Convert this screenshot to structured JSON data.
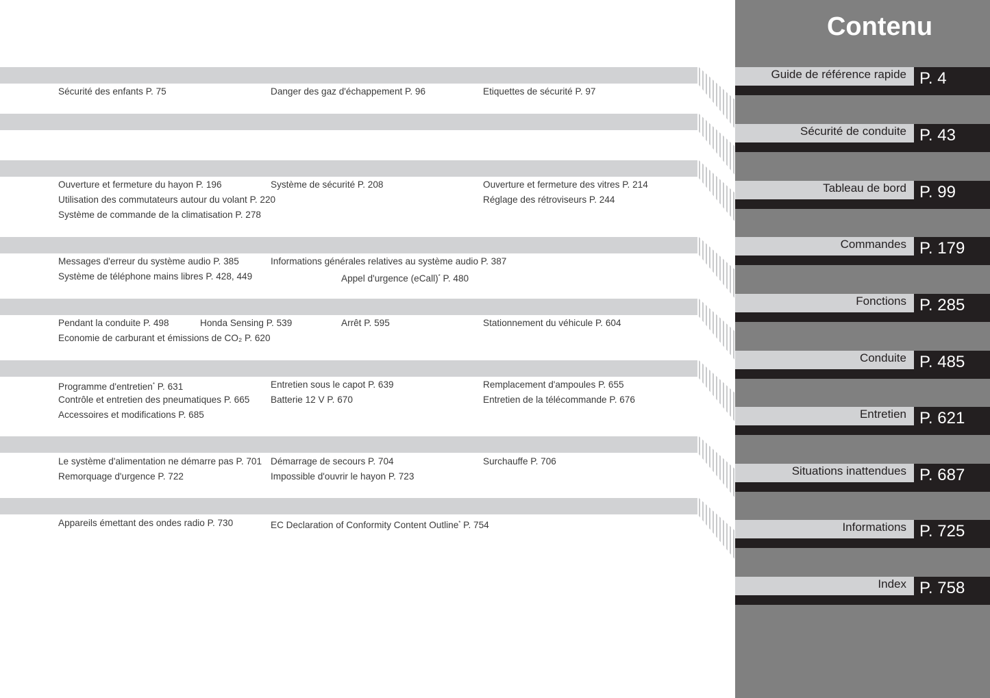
{
  "title": "Contenu",
  "colors": {
    "sidebar": "#808080",
    "tab_dark": "#231f20",
    "bar": "#d1d2d4"
  },
  "sections": [
    {
      "items": [
        "Sécurité des enfants P. 75",
        "Danger des gaz d'échappement P. 96",
        "Etiquettes de sécurité P. 97"
      ]
    },
    {
      "items": []
    },
    {
      "items": [
        "Ouverture et fermeture du hayon P. 196",
        "Système de sécurité P. 208",
        "Ouverture et fermeture des vitres P. 214",
        "Utilisation des commutateurs autour du volant P. 220",
        "Réglage des rétroviseurs P. 244",
        "Système de commande de la climatisation P. 278"
      ]
    },
    {
      "items": [
        "Messages d'erreur du système audio P. 385",
        "Informations générales relatives au système audio P. 387",
        "Système de téléphone mains libres P. 428, 449",
        {
          "pre": "Appel d'urgence (eCall)",
          "sup": "*",
          "post": " P. 480"
        }
      ]
    },
    {
      "items": [
        "Pendant la conduite P. 498",
        "Honda Sensing P. 539",
        "Arrêt P. 595",
        "Stationnement du véhicule P. 604",
        "Economie de carburant et émissions de CO₂ P. 620"
      ]
    },
    {
      "items": [
        {
          "pre": "Programme d'entretien",
          "sup": "*",
          "post": " P. 631"
        },
        "Entretien sous le capot P. 639",
        "Remplacement d'ampoules P. 655",
        "Contrôle et entretien des pneumatiques P. 665",
        "Batterie 12 V P. 670",
        "Entretien de la télécommande P. 676",
        "Accessoires et modifications P. 685"
      ]
    },
    {
      "items": [
        "Le système d'alimentation ne démarre pas P. 701",
        "Démarrage de secours P. 704",
        "Surchauffe P. 706",
        "Remorquage d'urgence P. 722",
        "Impossible d'ouvrir le hayon P. 723"
      ]
    },
    {
      "items": [
        "Appareils émettant des ondes radio P. 730",
        {
          "pre": "EC Declaration of Conformity Content Outline",
          "sup": "*",
          "post": " P. 754"
        }
      ]
    }
  ],
  "tabs": [
    {
      "label": "Guide de référence rapide",
      "page": "P. 4"
    },
    {
      "label": "Sécurité de conduite",
      "page": "P. 43"
    },
    {
      "label": "Tableau de bord",
      "page": "P. 99"
    },
    {
      "label": "Commandes",
      "page": "P. 179"
    },
    {
      "label": "Fonctions",
      "page": "P. 285"
    },
    {
      "label": "Conduite",
      "page": "P. 485"
    },
    {
      "label": "Entretien",
      "page": "P. 621"
    },
    {
      "label": "Situations inattendues",
      "page": "P. 687"
    },
    {
      "label": "Informations",
      "page": "P. 725"
    },
    {
      "label": "Index",
      "page": "P. 758"
    }
  ]
}
